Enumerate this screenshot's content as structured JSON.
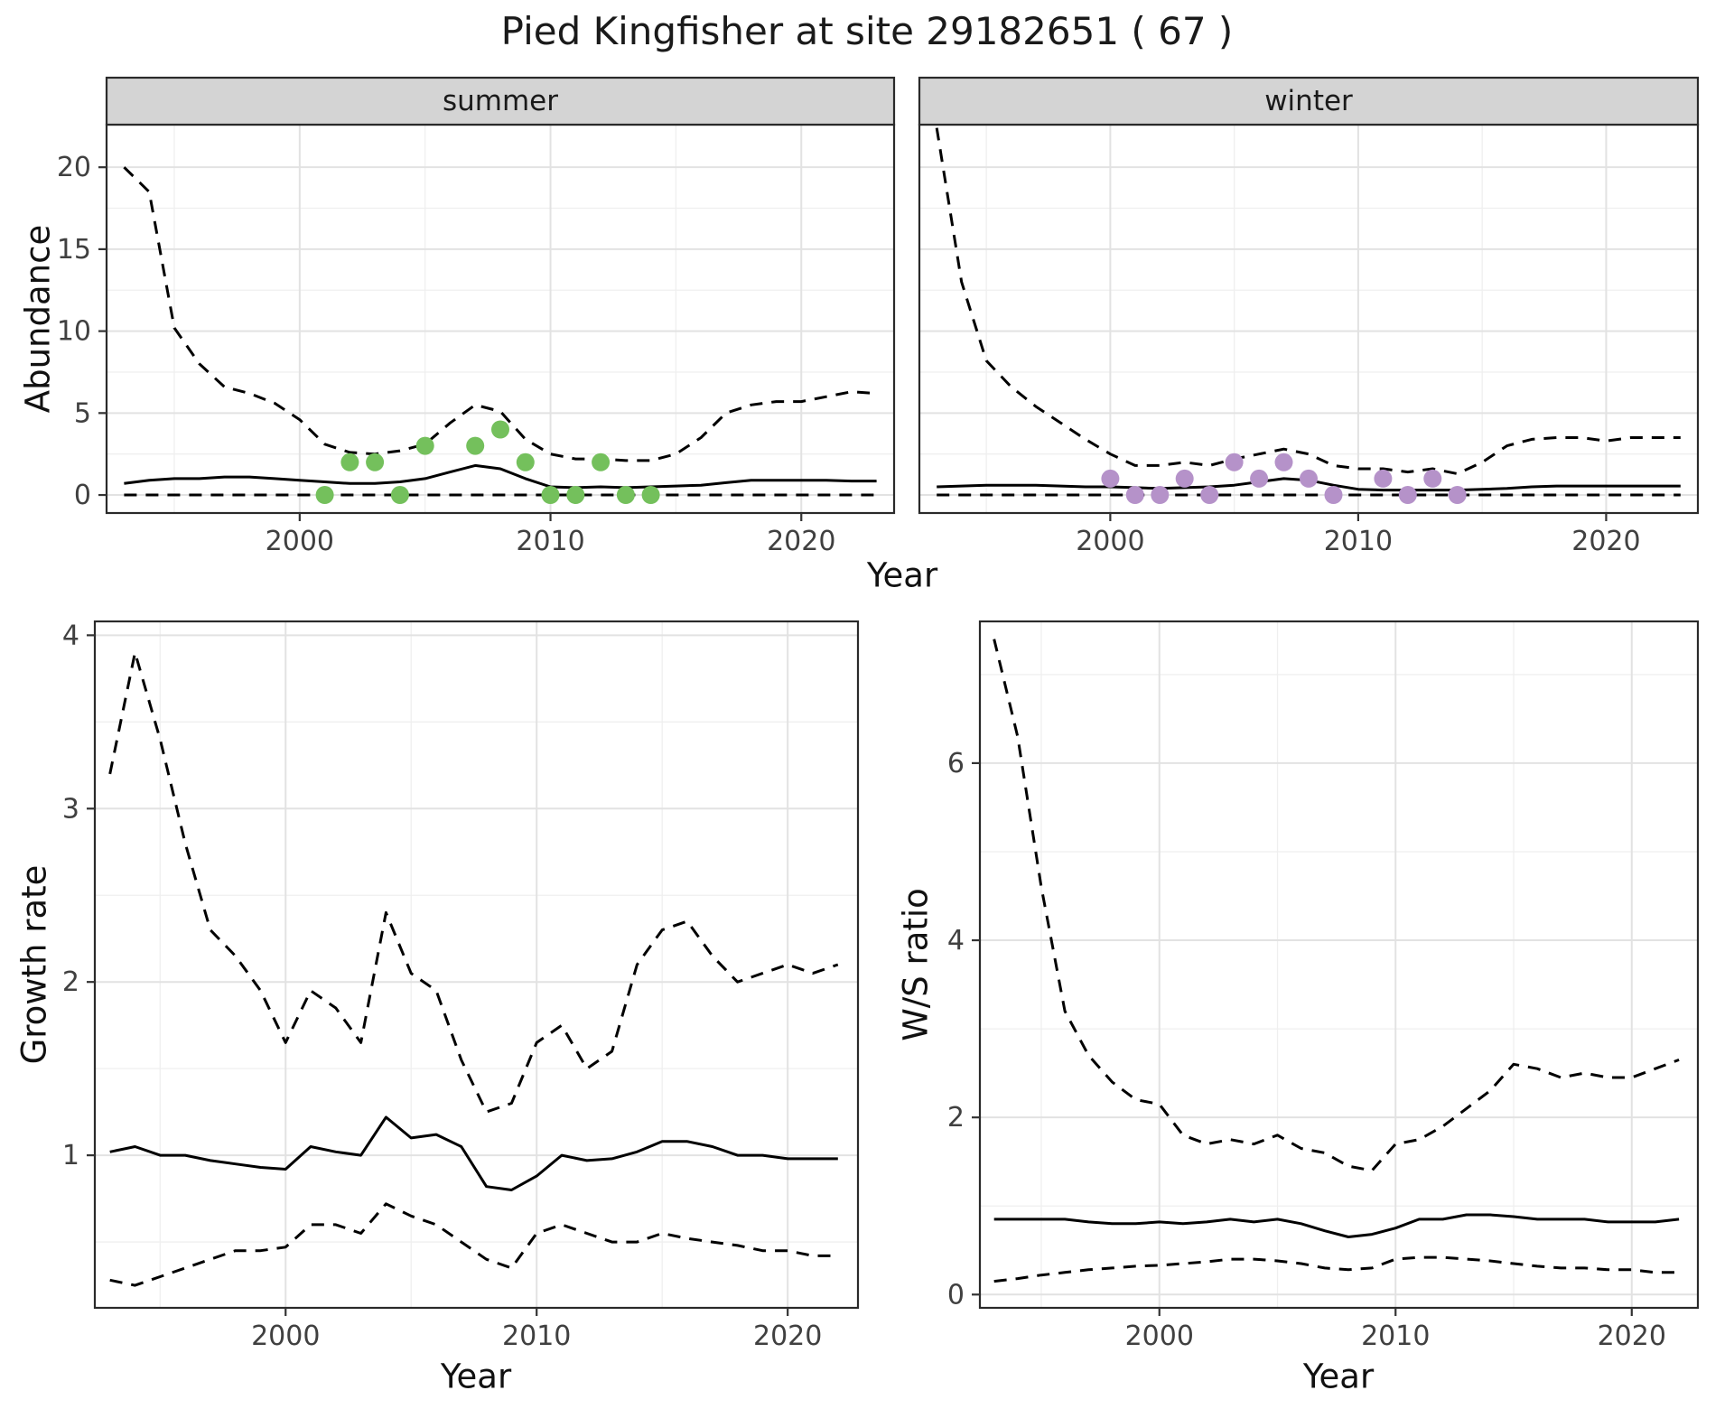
{
  "title": "Pied Kingfisher at site 29182651 ( 67 )",
  "colors": {
    "line": "#000000",
    "summer_points": "#74c05c",
    "winter_points": "#b592c9",
    "grid_major": "#e2e2e2",
    "grid_minor": "#efefef",
    "panel_border": "#2a2a2a",
    "strip_bg": "#d4d4d4",
    "tick_label": "#404040"
  },
  "chart_data": [
    {
      "id": "abundance-summer",
      "type": "line",
      "facet": "summer",
      "ylabel": "Abundance",
      "xlabel": "Year",
      "xlim": [
        1992.3,
        2023.7
      ],
      "ylim": [
        -1.1,
        22.6
      ],
      "xticks": [
        2000,
        2010,
        2020
      ],
      "yticks": [
        0,
        5,
        10,
        15,
        20
      ],
      "xticks_minor": [
        1995,
        2005,
        2015
      ],
      "yticks_minor": [
        2.5,
        7.5,
        12.5,
        17.5
      ],
      "x": [
        1993,
        1994,
        1995,
        1996,
        1997,
        1998,
        1999,
        2000,
        2001,
        2002,
        2003,
        2004,
        2005,
        2006,
        2007,
        2008,
        2009,
        2010,
        2011,
        2012,
        2013,
        2014,
        2015,
        2016,
        2017,
        2018,
        2019,
        2020,
        2021,
        2022,
        2023
      ],
      "series": [
        {
          "name": "upper_ci",
          "style": "dashed",
          "values": [
            20.0,
            18.5,
            10.2,
            8.0,
            6.6,
            6.2,
            5.6,
            4.6,
            3.1,
            2.6,
            2.5,
            2.7,
            3.1,
            4.4,
            5.5,
            5.1,
            3.4,
            2.5,
            2.2,
            2.2,
            2.1,
            2.1,
            2.5,
            3.5,
            5.0,
            5.5,
            5.7,
            5.7,
            6.0,
            6.3,
            6.2
          ]
        },
        {
          "name": "median",
          "style": "solid",
          "values": [
            0.7,
            0.9,
            1.0,
            1.0,
            1.1,
            1.1,
            1.0,
            0.9,
            0.8,
            0.7,
            0.7,
            0.8,
            1.0,
            1.4,
            1.8,
            1.6,
            1.0,
            0.5,
            0.45,
            0.5,
            0.45,
            0.5,
            0.55,
            0.6,
            0.75,
            0.9,
            0.9,
            0.9,
            0.9,
            0.85,
            0.85
          ]
        },
        {
          "name": "lower_ci",
          "style": "dashed",
          "values": [
            0,
            0,
            0,
            0,
            0,
            0,
            0,
            0,
            0,
            0,
            0,
            0,
            0,
            0,
            0,
            0,
            0,
            0,
            0,
            0,
            0,
            0,
            0,
            0,
            0,
            0,
            0,
            0,
            0,
            0,
            0
          ]
        }
      ],
      "points": {
        "name": "observations",
        "color_key": "summer_points",
        "x": [
          2001,
          2002,
          2003,
          2004,
          2005,
          2007,
          2008,
          2009,
          2010,
          2011,
          2012,
          2013,
          2014
        ],
        "y": [
          0,
          2,
          2,
          0,
          3,
          3,
          4,
          2,
          0,
          0,
          2,
          0,
          0
        ]
      }
    },
    {
      "id": "abundance-winter",
      "type": "line",
      "facet": "winter",
      "ylabel": "Abundance",
      "xlabel": "Year",
      "xlim": [
        1992.3,
        2023.7
      ],
      "ylim": [
        -1.1,
        22.6
      ],
      "xticks": [
        2000,
        2010,
        2020
      ],
      "yticks": [
        0,
        5,
        10,
        15,
        20
      ],
      "xticks_minor": [
        1995,
        2005,
        2015
      ],
      "yticks_minor": [
        2.5,
        7.5,
        12.5,
        17.5
      ],
      "x": [
        1993,
        1994,
        1995,
        1996,
        1997,
        1998,
        1999,
        2000,
        2001,
        2002,
        2003,
        2004,
        2005,
        2006,
        2007,
        2008,
        2009,
        2010,
        2011,
        2012,
        2013,
        2014,
        2015,
        2016,
        2017,
        2018,
        2019,
        2020,
        2021,
        2022,
        2023
      ],
      "series": [
        {
          "name": "upper_ci",
          "style": "dashed",
          "values": [
            22.4,
            13.0,
            8.2,
            6.6,
            5.4,
            4.4,
            3.4,
            2.5,
            1.8,
            1.8,
            2.0,
            1.8,
            2.2,
            2.5,
            2.8,
            2.5,
            1.8,
            1.6,
            1.6,
            1.4,
            1.6,
            1.3,
            2.0,
            3.0,
            3.4,
            3.5,
            3.5,
            3.3,
            3.5,
            3.5,
            3.5
          ]
        },
        {
          "name": "median",
          "style": "solid",
          "values": [
            0.5,
            0.55,
            0.6,
            0.6,
            0.6,
            0.55,
            0.5,
            0.5,
            0.45,
            0.4,
            0.45,
            0.5,
            0.6,
            0.8,
            1.0,
            0.9,
            0.6,
            0.35,
            0.3,
            0.3,
            0.3,
            0.3,
            0.35,
            0.4,
            0.5,
            0.55,
            0.55,
            0.55,
            0.55,
            0.55,
            0.55
          ]
        },
        {
          "name": "lower_ci",
          "style": "dashed",
          "values": [
            0,
            0,
            0,
            0,
            0,
            0,
            0,
            0,
            0,
            0,
            0,
            0,
            0,
            0,
            0,
            0,
            0,
            0,
            0,
            0,
            0,
            0,
            0,
            0,
            0,
            0,
            0,
            0,
            0,
            0,
            0
          ]
        }
      ],
      "points": {
        "name": "observations",
        "color_key": "winter_points",
        "x": [
          2000,
          2001,
          2002,
          2003,
          2004,
          2005,
          2006,
          2007,
          2008,
          2009,
          2011,
          2012,
          2013,
          2014
        ],
        "y": [
          1,
          0,
          0,
          1,
          0,
          2,
          1,
          2,
          1,
          0,
          1,
          0,
          1,
          0
        ]
      }
    },
    {
      "id": "growth-rate",
      "type": "line",
      "facet": "",
      "ylabel": "Growth rate",
      "xlabel": "Year",
      "xlim": [
        1992.4,
        2022.8
      ],
      "ylim": [
        0.12,
        4.08
      ],
      "xticks": [
        2000,
        2010,
        2020
      ],
      "yticks": [
        1,
        2,
        3,
        4
      ],
      "xticks_minor": [
        1995,
        2005,
        2015
      ],
      "yticks_minor": [
        0.5,
        1.5,
        2.5,
        3.5
      ],
      "x": [
        1993,
        1994,
        1995,
        1996,
        1997,
        1998,
        1999,
        2000,
        2001,
        2002,
        2003,
        2004,
        2005,
        2006,
        2007,
        2008,
        2009,
        2010,
        2011,
        2012,
        2013,
        2014,
        2015,
        2016,
        2017,
        2018,
        2019,
        2020,
        2021,
        2022
      ],
      "series": [
        {
          "name": "upper_ci",
          "style": "dashed",
          "values": [
            3.2,
            3.9,
            3.4,
            2.8,
            2.3,
            2.15,
            1.95,
            1.65,
            1.95,
            1.85,
            1.65,
            2.4,
            2.05,
            1.95,
            1.55,
            1.25,
            1.3,
            1.65,
            1.75,
            1.5,
            1.6,
            2.1,
            2.3,
            2.35,
            2.15,
            2.0,
            2.05,
            2.1,
            2.05,
            2.1
          ]
        },
        {
          "name": "median",
          "style": "solid",
          "values": [
            1.02,
            1.05,
            1.0,
            1.0,
            0.97,
            0.95,
            0.93,
            0.92,
            1.05,
            1.02,
            1.0,
            1.22,
            1.1,
            1.12,
            1.05,
            0.82,
            0.8,
            0.88,
            1.0,
            0.97,
            0.98,
            1.02,
            1.08,
            1.08,
            1.05,
            1.0,
            1.0,
            0.98,
            0.98,
            0.98
          ]
        },
        {
          "name": "lower_ci",
          "style": "dashed",
          "values": [
            0.28,
            0.25,
            0.3,
            0.35,
            0.4,
            0.45,
            0.45,
            0.47,
            0.6,
            0.6,
            0.55,
            0.72,
            0.65,
            0.6,
            0.5,
            0.4,
            0.35,
            0.55,
            0.6,
            0.55,
            0.5,
            0.5,
            0.55,
            0.52,
            0.5,
            0.48,
            0.45,
            0.45,
            0.42,
            0.42
          ]
        }
      ]
    },
    {
      "id": "ws-ratio",
      "type": "line",
      "facet": "",
      "ylabel": "W/S ratio",
      "xlabel": "Year",
      "xlim": [
        1992.4,
        2022.8
      ],
      "ylim": [
        -0.15,
        7.6
      ],
      "xticks": [
        2000,
        2010,
        2020
      ],
      "yticks": [
        0,
        2,
        4,
        6
      ],
      "xticks_minor": [
        1995,
        2005,
        2015
      ],
      "yticks_minor": [
        1,
        3,
        5,
        7
      ],
      "x": [
        1993,
        1994,
        1995,
        1996,
        1997,
        1998,
        1999,
        2000,
        2001,
        2002,
        2003,
        2004,
        2005,
        2006,
        2007,
        2008,
        2009,
        2010,
        2011,
        2012,
        2013,
        2014,
        2015,
        2016,
        2017,
        2018,
        2019,
        2020,
        2021,
        2022
      ],
      "series": [
        {
          "name": "upper_ci",
          "style": "dashed",
          "values": [
            7.4,
            6.3,
            4.6,
            3.2,
            2.7,
            2.4,
            2.2,
            2.15,
            1.8,
            1.7,
            1.75,
            1.7,
            1.8,
            1.65,
            1.6,
            1.45,
            1.4,
            1.7,
            1.75,
            1.9,
            2.1,
            2.3,
            2.6,
            2.55,
            2.45,
            2.5,
            2.45,
            2.45,
            2.55,
            2.65
          ]
        },
        {
          "name": "median",
          "style": "solid",
          "values": [
            0.85,
            0.85,
            0.85,
            0.85,
            0.82,
            0.8,
            0.8,
            0.82,
            0.8,
            0.82,
            0.85,
            0.82,
            0.85,
            0.8,
            0.72,
            0.65,
            0.68,
            0.75,
            0.85,
            0.85,
            0.9,
            0.9,
            0.88,
            0.85,
            0.85,
            0.85,
            0.82,
            0.82,
            0.82,
            0.85
          ]
        },
        {
          "name": "lower_ci",
          "style": "dashed",
          "values": [
            0.15,
            0.18,
            0.22,
            0.25,
            0.28,
            0.3,
            0.32,
            0.33,
            0.35,
            0.37,
            0.4,
            0.4,
            0.38,
            0.35,
            0.3,
            0.28,
            0.3,
            0.4,
            0.42,
            0.42,
            0.4,
            0.38,
            0.35,
            0.32,
            0.3,
            0.3,
            0.28,
            0.28,
            0.25,
            0.25
          ]
        }
      ]
    }
  ]
}
